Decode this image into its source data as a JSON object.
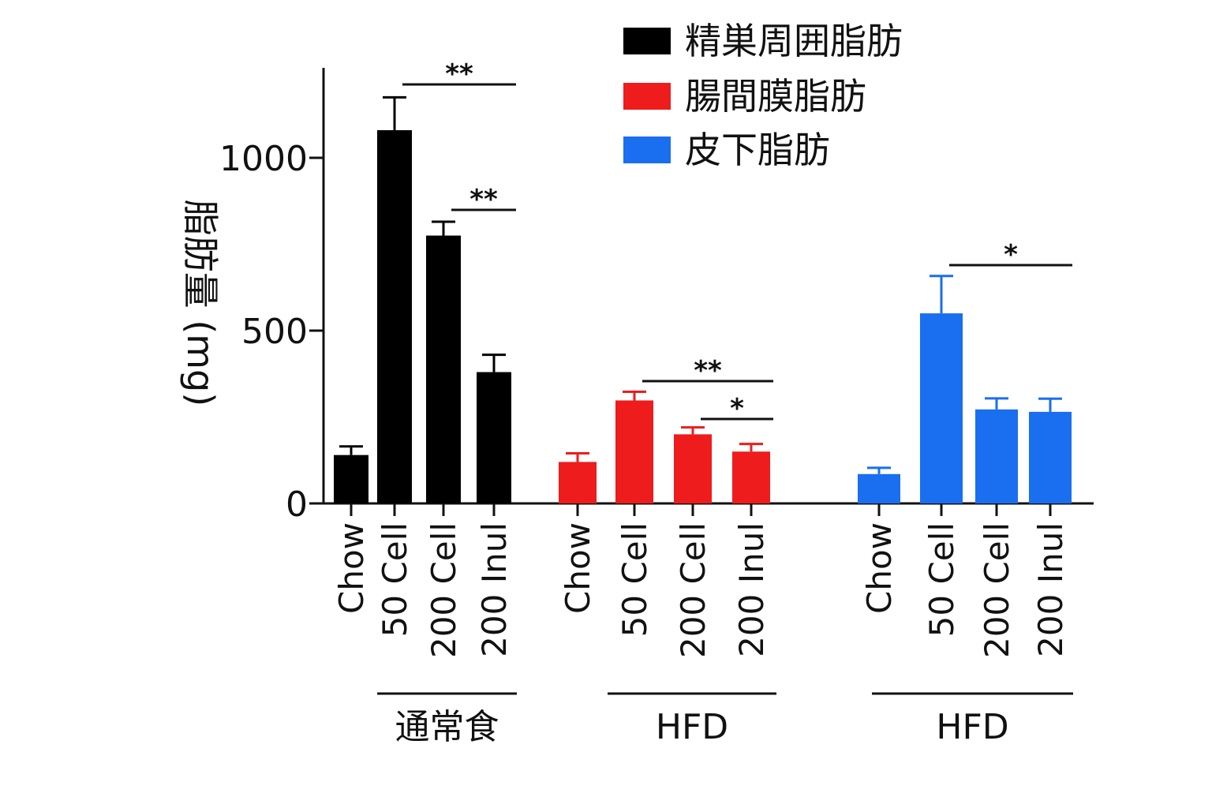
{
  "chart_data": {
    "type": "bar",
    "ylabel": "脂肪量 (mg)",
    "ylim": [
      0,
      1250
    ],
    "yticks": [
      0,
      500,
      1000
    ],
    "legend_position": "top-right",
    "grid": false,
    "series": [
      {
        "name": "精巣周囲脂肪",
        "color": "#000000",
        "group_label": "通常食",
        "categories": [
          "Chow",
          "50 Cell",
          "200 Cell",
          "200 Inul"
        ],
        "values": [
          140,
          1080,
          775,
          380
        ],
        "errors": [
          25,
          95,
          40,
          50
        ],
        "significance": [
          {
            "from": "50 Cell",
            "to": "200 Inul",
            "label": "**"
          },
          {
            "from": "200 Cell",
            "to": "200 Inul",
            "label": "**"
          }
        ]
      },
      {
        "name": "腸間膜脂肪",
        "color": "#ee1c1c",
        "group_label": "HFD",
        "categories": [
          "Chow",
          "50 Cell",
          "200 Cell",
          "200 Inul"
        ],
        "values": [
          120,
          298,
          200,
          150
        ],
        "errors": [
          25,
          25,
          20,
          22
        ],
        "significance": [
          {
            "from": "50 Cell",
            "to": "200 Inul",
            "label": "**"
          },
          {
            "from": "200 Cell",
            "to": "200 Inul",
            "label": "*"
          }
        ]
      },
      {
        "name": "皮下脂肪",
        "color": "#1a6ef0",
        "group_label": "HFD",
        "categories": [
          "Chow",
          "50 Cell",
          "200 Cell",
          "200 Inul"
        ],
        "values": [
          85,
          550,
          272,
          265
        ],
        "errors": [
          18,
          108,
          32,
          38
        ],
        "significance": [
          {
            "from": "50 Cell",
            "to": "200 Inul",
            "label": "*"
          }
        ]
      }
    ]
  }
}
